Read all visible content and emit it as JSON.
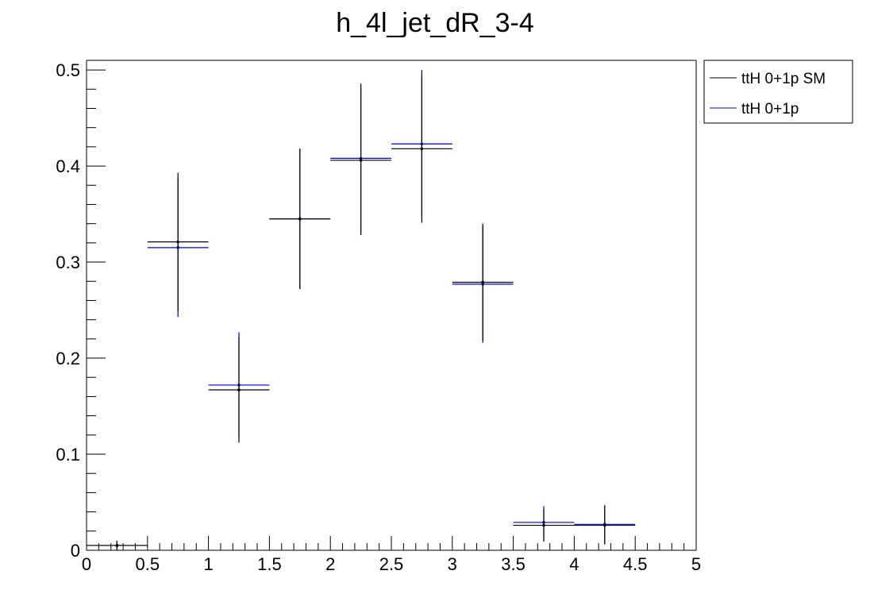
{
  "chart_data": {
    "type": "scatter",
    "title": "h_4l_jet_dR_3-4",
    "xlabel": "",
    "ylabel": "",
    "xlim": [
      0,
      5
    ],
    "ylim": [
      0,
      0.51
    ],
    "x_ticks": [
      "0",
      "0.5",
      "1",
      "1.5",
      "2",
      "2.5",
      "3",
      "3.5",
      "4",
      "4.5",
      "5"
    ],
    "y_ticks": [
      "0",
      "0.1",
      "0.2",
      "0.3",
      "0.4",
      "0.5"
    ],
    "bin_width": 0.5,
    "legend_position": "top-right-outside",
    "series": [
      {
        "name": "ttH 0+1p SM",
        "color": "#000000",
        "x": [
          0.25,
          0.75,
          1.25,
          1.75,
          2.25,
          2.75,
          3.25,
          3.75,
          4.25
        ],
        "y": [
          0.005,
          0.321,
          0.167,
          0.345,
          0.406,
          0.418,
          0.279,
          0.026,
          0.026
        ],
        "yerr": [
          0.005,
          0.072,
          0.055,
          0.073,
          0.078,
          0.077,
          0.061,
          0.017,
          0.02
        ]
      },
      {
        "name": "ttH 0+1p",
        "color": "#0000cc",
        "x": [
          0.25,
          0.75,
          1.25,
          1.75,
          2.25,
          2.75,
          3.25,
          3.75,
          4.25
        ],
        "y": [
          0.005,
          0.315,
          0.172,
          0.345,
          0.408,
          0.423,
          0.277,
          0.029,
          0.027
        ],
        "yerr": [
          0.005,
          0.072,
          0.055,
          0.073,
          0.078,
          0.077,
          0.061,
          0.017,
          0.02
        ]
      }
    ]
  }
}
